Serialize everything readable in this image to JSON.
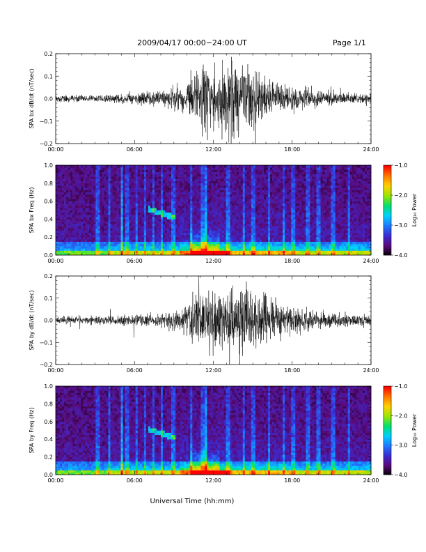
{
  "header": {
    "title": "2009/04/17   00:00−24:00 UT",
    "page": "Page 1/1"
  },
  "colors": {
    "trace": "#000000",
    "spectrogram_colormap": [
      "#000000",
      "#5a0a7a",
      "#3a2ad0",
      "#1e78ff",
      "#00d2ff",
      "#00e070",
      "#9ae600",
      "#ffd200",
      "#ff7800",
      "#ff0000"
    ]
  },
  "chart_data": [
    {
      "type": "line",
      "ylabel": "SPA bx dB/dt (nT/sec)",
      "ylim": [
        -0.2,
        0.2
      ],
      "yticks": [
        "0.2",
        "0.1",
        "0.0",
        "−0.1",
        "−0.2"
      ],
      "xlim": [
        "00:00",
        "24:00"
      ],
      "xticks": [
        "00:00",
        "06:00",
        "12:00",
        "18:00",
        "24:00"
      ],
      "series": [
        {
          "x_hours": [
            0,
            4,
            6,
            8,
            9.5,
            11,
            12,
            13.5,
            15,
            16.5,
            18,
            20,
            24
          ],
          "envelope_amplitude": [
            0.02,
            0.025,
            0.04,
            0.05,
            0.08,
            0.22,
            0.22,
            0.22,
            0.2,
            0.12,
            0.08,
            0.05,
            0.03
          ]
        }
      ]
    },
    {
      "type": "heatmap",
      "ylabel": "SPA bx Freq (Hz)",
      "ylim": [
        0.0,
        1.0
      ],
      "yticks": [
        "1.0",
        "0.8",
        "0.6",
        "0.4",
        "0.2",
        "0.0"
      ],
      "xlim": [
        "00:00",
        "24:00"
      ],
      "xticks": [
        "00:00",
        "06:00",
        "12:00",
        "18:00",
        "24:00"
      ],
      "colorbar": {
        "label": "Log₁₀ Power",
        "range": [
          -4.0,
          -1.0
        ],
        "ticks": [
          "−1.0",
          "−2.0",
          "−3.0",
          "−4.0"
        ]
      }
    },
    {
      "type": "line",
      "ylabel": "SPA by dB/dt (nT/sec)",
      "ylim": [
        -0.2,
        0.2
      ],
      "yticks": [
        "0.2",
        "0.1",
        "0.0",
        "−0.1",
        "−0.2"
      ],
      "xlim": [
        "00:00",
        "24:00"
      ],
      "xticks": [
        "00:00",
        "06:00",
        "12:00",
        "18:00",
        "24:00"
      ],
      "series": [
        {
          "x_hours": [
            0,
            4,
            6,
            8,
            9.5,
            10.8,
            12,
            13.5,
            15,
            16.5,
            18,
            20,
            24
          ],
          "envelope_amplitude": [
            0.025,
            0.03,
            0.04,
            0.05,
            0.07,
            0.22,
            0.18,
            0.22,
            0.2,
            0.14,
            0.09,
            0.06,
            0.04
          ]
        }
      ]
    },
    {
      "type": "heatmap",
      "ylabel": "SPA by Freq (Hz)",
      "ylim": [
        0.0,
        1.0
      ],
      "yticks": [
        "1.0",
        "0.8",
        "0.6",
        "0.4",
        "0.2",
        "0.0"
      ],
      "xlim": [
        "00:00",
        "24:00"
      ],
      "xticks": [
        "00:00",
        "06:00",
        "12:00",
        "18:00",
        "24:00"
      ],
      "colorbar": {
        "label": "Log₁₀ Power",
        "range": [
          -4.0,
          -1.0
        ],
        "ticks": [
          "−1.0",
          "−2.0",
          "−3.0",
          "−4.0"
        ]
      }
    }
  ],
  "xlabel": "Universal Time (hh:mm)"
}
